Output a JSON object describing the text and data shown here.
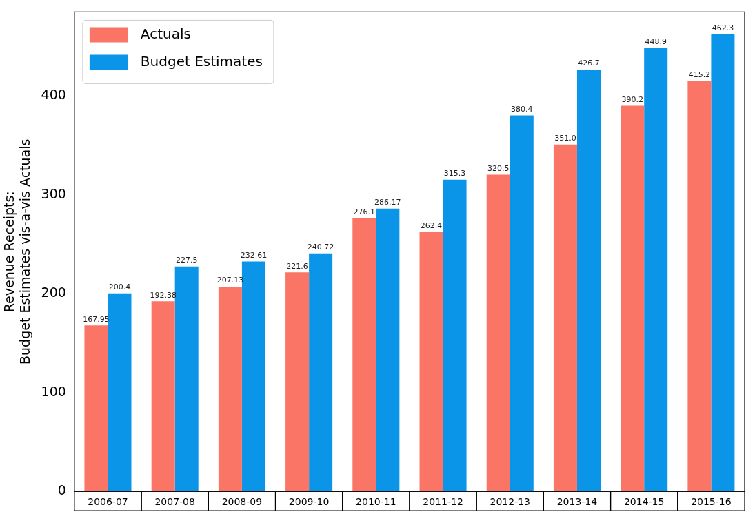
{
  "chart_data": {
    "type": "bar",
    "ylabel": "Revenue Receipts:\nBudget Estimates vis-a-vis Actuals",
    "categories": [
      "2006-07",
      "2007-08",
      "2008-09",
      "2009-10",
      "2010-11",
      "2011-12",
      "2012-13",
      "2013-14",
      "2014-15",
      "2015-16"
    ],
    "series": [
      {
        "name": "Actuals",
        "color": "#fa7565",
        "values": [
          167.95,
          192.38,
          207.13,
          221.6,
          276.1,
          262.4,
          320.5,
          351.0,
          390.2,
          415.2
        ],
        "value_labels": [
          "167.95",
          "192.38",
          "207.13",
          "221.6",
          "276.1",
          "262.4",
          "320.5",
          "351.0",
          "390.2",
          "415.2"
        ]
      },
      {
        "name": "Budget Estimates",
        "color": "#0a95e9",
        "values": [
          200.4,
          227.5,
          232.61,
          240.72,
          286.17,
          315.3,
          380.4,
          426.7,
          448.9,
          462.3
        ],
        "value_labels": [
          "200.4",
          "227.5",
          "232.61",
          "240.72",
          "286.17",
          "315.3",
          "380.4",
          "426.7",
          "448.9",
          "462.3"
        ]
      }
    ],
    "ylim": [
      0,
      485
    ],
    "yticks": [
      0,
      100,
      200,
      300,
      400
    ],
    "grid": false,
    "legend": "top left"
  }
}
